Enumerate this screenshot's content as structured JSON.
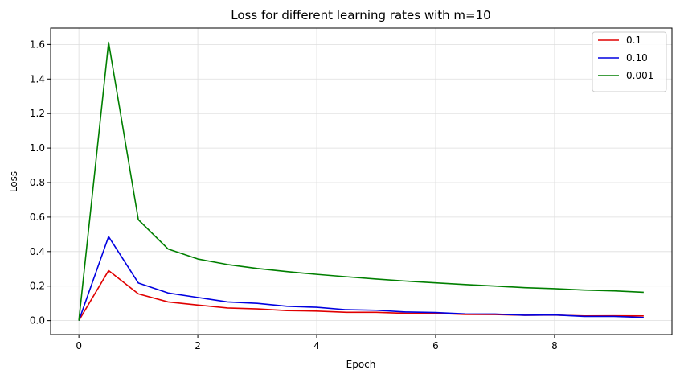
{
  "chart_data": {
    "type": "line",
    "title": "Loss for different learning rates with m=10",
    "xlabel": "Epoch",
    "ylabel": "Loss",
    "xlim": [
      -0.475,
      9.975
    ],
    "ylim": [
      -0.081,
      1.695
    ],
    "x_ticks": [
      "0",
      "2",
      "4",
      "6",
      "8"
    ],
    "x_tick_values": [
      0,
      2,
      4,
      6,
      8
    ],
    "y_ticks": [
      "0.0",
      "0.2",
      "0.4",
      "0.6",
      "0.8",
      "1.0",
      "1.2",
      "1.4",
      "1.6"
    ],
    "y_tick_values": [
      0.0,
      0.2,
      0.4,
      0.6,
      0.8,
      1.0,
      1.2,
      1.4,
      1.6
    ],
    "grid": true,
    "legend_position": "top-right",
    "x": [
      0,
      0.5,
      1,
      1.5,
      2,
      2.5,
      3,
      3.5,
      4,
      4.5,
      5,
      5.5,
      6,
      6.5,
      7,
      7.5,
      8,
      8.5,
      9,
      9.5
    ],
    "series": [
      {
        "name": "0.1",
        "color": "#e00000",
        "values": [
          0.0,
          0.29,
          0.155,
          0.108,
          0.09,
          0.073,
          0.068,
          0.058,
          0.055,
          0.048,
          0.048,
          0.042,
          0.042,
          0.036,
          0.035,
          0.031,
          0.032,
          0.027,
          0.028,
          0.027
        ]
      },
      {
        "name": "0.10",
        "color": "#0000e0",
        "values": [
          0.0,
          0.487,
          0.218,
          0.16,
          0.134,
          0.108,
          0.1,
          0.083,
          0.077,
          0.063,
          0.06,
          0.05,
          0.047,
          0.039,
          0.038,
          0.031,
          0.033,
          0.024,
          0.024,
          0.018
        ]
      },
      {
        "name": "0.001",
        "color": "#007f00",
        "values": [
          0.0,
          1.613,
          0.585,
          0.415,
          0.357,
          0.325,
          0.302,
          0.284,
          0.268,
          0.254,
          0.241,
          0.229,
          0.219,
          0.209,
          0.2,
          0.191,
          0.185,
          0.177,
          0.172,
          0.164
        ]
      }
    ]
  }
}
